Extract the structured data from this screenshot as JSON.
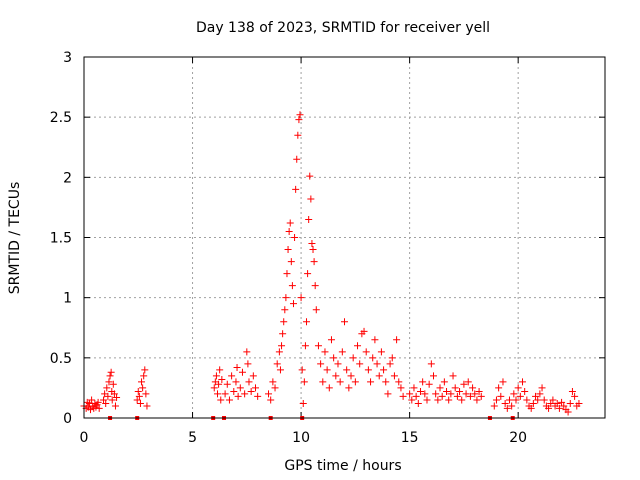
{
  "chart_data": {
    "type": "scatter",
    "title": "Day 138 of 2023, SRMTID for receiver yell",
    "xlabel": "GPS time / hours",
    "ylabel": "SRMTID / TECUs",
    "xlim": [
      0,
      24
    ],
    "ylim": [
      0,
      3
    ],
    "xticks": [
      0,
      5,
      10,
      15,
      20
    ],
    "yticks": [
      0,
      0.5,
      1,
      1.5,
      2,
      2.5,
      3
    ],
    "xtick_labels": [
      "0",
      "5",
      "10",
      "15",
      "20"
    ],
    "ytick_labels": [
      "0",
      "0.5",
      "1",
      "1.5",
      "2",
      "2.5",
      "3"
    ],
    "grid": true,
    "marker": "+",
    "series": [
      {
        "name": "SRMTID",
        "color": "#ff0000",
        "points": [
          [
            0.0,
            0.1
          ],
          [
            0.1,
            0.08
          ],
          [
            0.15,
            0.13
          ],
          [
            0.2,
            0.09
          ],
          [
            0.25,
            0.12
          ],
          [
            0.3,
            0.07
          ],
          [
            0.35,
            0.15
          ],
          [
            0.4,
            0.1
          ],
          [
            0.45,
            0.08
          ],
          [
            0.5,
            0.12
          ],
          [
            0.55,
            0.09
          ],
          [
            0.6,
            0.11
          ],
          [
            0.65,
            0.13
          ],
          [
            0.7,
            0.08
          ],
          [
            0.9,
            0.15
          ],
          [
            0.95,
            0.2
          ],
          [
            1.0,
            0.12
          ],
          [
            1.05,
            0.25
          ],
          [
            1.1,
            0.18
          ],
          [
            1.15,
            0.3
          ],
          [
            1.2,
            0.35
          ],
          [
            1.25,
            0.38
          ],
          [
            1.28,
            0.22
          ],
          [
            1.3,
            0.15
          ],
          [
            1.35,
            0.28
          ],
          [
            1.4,
            0.2
          ],
          [
            1.45,
            0.1
          ],
          [
            1.5,
            0.17
          ],
          [
            2.45,
            0.15
          ],
          [
            2.5,
            0.22
          ],
          [
            2.55,
            0.18
          ],
          [
            2.6,
            0.12
          ],
          [
            2.65,
            0.3
          ],
          [
            2.7,
            0.25
          ],
          [
            2.75,
            0.35
          ],
          [
            2.8,
            0.4
          ],
          [
            2.85,
            0.2
          ],
          [
            2.9,
            0.1
          ],
          [
            6.0,
            0.25
          ],
          [
            6.05,
            0.3
          ],
          [
            6.1,
            0.35
          ],
          [
            6.15,
            0.2
          ],
          [
            6.2,
            0.28
          ],
          [
            6.25,
            0.4
          ],
          [
            6.3,
            0.15
          ],
          [
            6.35,
            0.32
          ],
          [
            6.5,
            0.2
          ],
          [
            6.6,
            0.28
          ],
          [
            6.7,
            0.15
          ],
          [
            6.8,
            0.35
          ],
          [
            6.9,
            0.22
          ],
          [
            7.0,
            0.3
          ],
          [
            7.05,
            0.42
          ],
          [
            7.1,
            0.18
          ],
          [
            7.2,
            0.25
          ],
          [
            7.3,
            0.38
          ],
          [
            7.4,
            0.2
          ],
          [
            7.5,
            0.55
          ],
          [
            7.55,
            0.45
          ],
          [
            7.6,
            0.3
          ],
          [
            7.7,
            0.22
          ],
          [
            7.8,
            0.35
          ],
          [
            7.9,
            0.25
          ],
          [
            8.0,
            0.18
          ],
          [
            8.5,
            0.2
          ],
          [
            8.6,
            0.15
          ],
          [
            8.7,
            0.3
          ],
          [
            8.8,
            0.25
          ],
          [
            8.9,
            0.45
          ],
          [
            9.0,
            0.55
          ],
          [
            9.05,
            0.4
          ],
          [
            9.1,
            0.6
          ],
          [
            9.15,
            0.7
          ],
          [
            9.2,
            0.8
          ],
          [
            9.25,
            0.9
          ],
          [
            9.3,
            1.0
          ],
          [
            9.35,
            1.2
          ],
          [
            9.4,
            1.4
          ],
          [
            9.45,
            1.55
          ],
          [
            9.5,
            1.62
          ],
          [
            9.55,
            1.3
          ],
          [
            9.6,
            1.1
          ],
          [
            9.65,
            0.95
          ],
          [
            9.7,
            1.5
          ],
          [
            9.75,
            1.9
          ],
          [
            9.8,
            2.15
          ],
          [
            9.85,
            2.35
          ],
          [
            9.9,
            2.48
          ],
          [
            9.95,
            2.52
          ],
          [
            10.0,
            1.0
          ],
          [
            10.05,
            0.4
          ],
          [
            10.1,
            0.12
          ],
          [
            10.15,
            0.3
          ],
          [
            10.2,
            0.6
          ],
          [
            10.25,
            0.8
          ],
          [
            10.3,
            1.2
          ],
          [
            10.35,
            1.65
          ],
          [
            10.4,
            2.01
          ],
          [
            10.45,
            1.82
          ],
          [
            10.5,
            1.45
          ],
          [
            10.55,
            1.4
          ],
          [
            10.6,
            1.3
          ],
          [
            10.65,
            1.1
          ],
          [
            10.7,
            0.9
          ],
          [
            10.8,
            0.6
          ],
          [
            10.9,
            0.45
          ],
          [
            11.0,
            0.3
          ],
          [
            11.1,
            0.55
          ],
          [
            11.2,
            0.4
          ],
          [
            11.3,
            0.25
          ],
          [
            11.4,
            0.65
          ],
          [
            11.5,
            0.5
          ],
          [
            11.6,
            0.35
          ],
          [
            11.7,
            0.45
          ],
          [
            11.8,
            0.3
          ],
          [
            11.9,
            0.55
          ],
          [
            12.0,
            0.8
          ],
          [
            12.1,
            0.4
          ],
          [
            12.2,
            0.25
          ],
          [
            12.3,
            0.35
          ],
          [
            12.4,
            0.5
          ],
          [
            12.5,
            0.3
          ],
          [
            12.6,
            0.6
          ],
          [
            12.7,
            0.45
          ],
          [
            12.8,
            0.7
          ],
          [
            12.9,
            0.72
          ],
          [
            13.0,
            0.55
          ],
          [
            13.1,
            0.4
          ],
          [
            13.2,
            0.3
          ],
          [
            13.3,
            0.5
          ],
          [
            13.4,
            0.65
          ],
          [
            13.5,
            0.45
          ],
          [
            13.6,
            0.35
          ],
          [
            13.7,
            0.55
          ],
          [
            13.8,
            0.4
          ],
          [
            13.9,
            0.3
          ],
          [
            14.0,
            0.2
          ],
          [
            14.1,
            0.45
          ],
          [
            14.2,
            0.5
          ],
          [
            14.3,
            0.35
          ],
          [
            14.4,
            0.65
          ],
          [
            14.5,
            0.3
          ],
          [
            14.6,
            0.25
          ],
          [
            14.7,
            0.18
          ],
          [
            15.0,
            0.2
          ],
          [
            15.1,
            0.15
          ],
          [
            15.2,
            0.25
          ],
          [
            15.3,
            0.18
          ],
          [
            15.4,
            0.12
          ],
          [
            15.5,
            0.22
          ],
          [
            15.6,
            0.3
          ],
          [
            15.7,
            0.2
          ],
          [
            15.8,
            0.15
          ],
          [
            15.9,
            0.28
          ],
          [
            16.0,
            0.45
          ],
          [
            16.1,
            0.35
          ],
          [
            16.2,
            0.2
          ],
          [
            16.3,
            0.15
          ],
          [
            16.4,
            0.25
          ],
          [
            16.5,
            0.18
          ],
          [
            16.6,
            0.3
          ],
          [
            16.7,
            0.22
          ],
          [
            16.8,
            0.15
          ],
          [
            16.9,
            0.2
          ],
          [
            17.0,
            0.35
          ],
          [
            17.1,
            0.25
          ],
          [
            17.2,
            0.18
          ],
          [
            17.3,
            0.22
          ],
          [
            17.4,
            0.15
          ],
          [
            17.5,
            0.28
          ],
          [
            17.6,
            0.2
          ],
          [
            17.7,
            0.3
          ],
          [
            17.8,
            0.18
          ],
          [
            17.9,
            0.25
          ],
          [
            18.0,
            0.2
          ],
          [
            18.1,
            0.15
          ],
          [
            18.2,
            0.22
          ],
          [
            18.3,
            0.18
          ],
          [
            18.9,
            0.1
          ],
          [
            19.0,
            0.15
          ],
          [
            19.1,
            0.25
          ],
          [
            19.2,
            0.18
          ],
          [
            19.3,
            0.3
          ],
          [
            19.4,
            0.12
          ],
          [
            19.5,
            0.08
          ],
          [
            19.6,
            0.15
          ],
          [
            19.7,
            0.1
          ],
          [
            19.8,
            0.2
          ],
          [
            19.9,
            0.15
          ],
          [
            20.0,
            0.25
          ],
          [
            20.1,
            0.18
          ],
          [
            20.2,
            0.3
          ],
          [
            20.3,
            0.22
          ],
          [
            20.4,
            0.15
          ],
          [
            20.5,
            0.1
          ],
          [
            20.6,
            0.08
          ],
          [
            20.7,
            0.12
          ],
          [
            20.8,
            0.18
          ],
          [
            20.9,
            0.15
          ],
          [
            21.0,
            0.2
          ],
          [
            21.1,
            0.25
          ],
          [
            21.2,
            0.15
          ],
          [
            21.3,
            0.1
          ],
          [
            21.4,
            0.08
          ],
          [
            21.5,
            0.12
          ],
          [
            21.6,
            0.15
          ],
          [
            21.7,
            0.1
          ],
          [
            21.8,
            0.12
          ],
          [
            21.9,
            0.08
          ],
          [
            22.0,
            0.13
          ],
          [
            22.1,
            0.1
          ],
          [
            22.2,
            0.07
          ],
          [
            22.3,
            0.05
          ],
          [
            22.4,
            0.12
          ],
          [
            22.5,
            0.22
          ],
          [
            22.6,
            0.18
          ],
          [
            22.7,
            0.1
          ],
          [
            22.8,
            0.12
          ]
        ],
        "zero_markers": [
          1.2,
          2.45,
          5.95,
          6.45,
          8.6,
          10.05,
          18.7,
          19.75
        ]
      }
    ]
  }
}
